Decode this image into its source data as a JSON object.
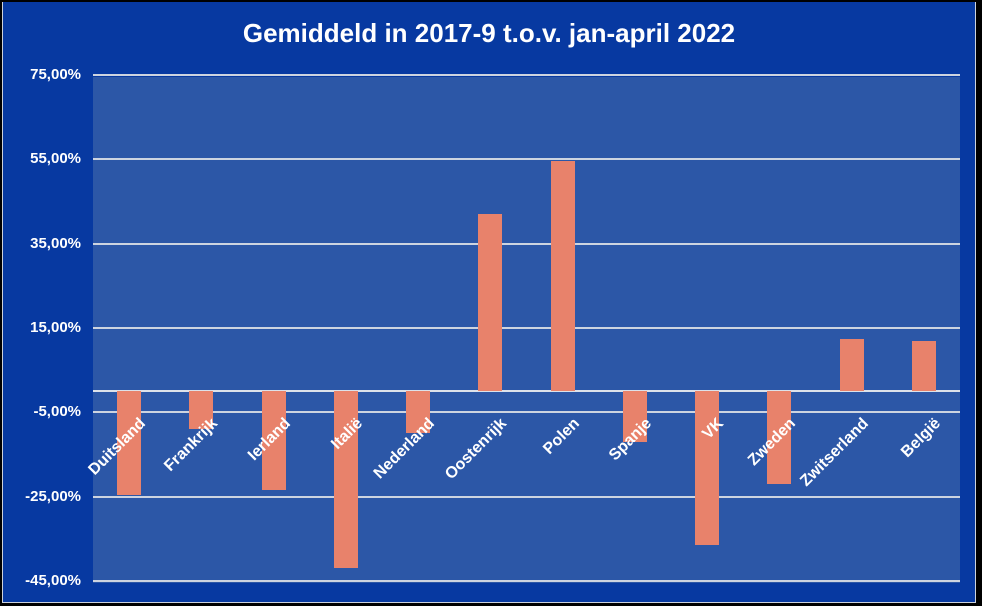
{
  "chart_data": {
    "type": "bar",
    "title": "Gemiddeld in 2017-9 t.o.v. jan-april 2022",
    "categories": [
      "Duitsland",
      "Frankrijk",
      "Ierland",
      "Italië",
      "Nederland",
      "Oostenrijk",
      "Polen",
      "Spanje",
      "VK",
      "Zweden",
      "Zwitserland",
      "België"
    ],
    "values": [
      -24.5,
      -9,
      -23.5,
      -42,
      -10,
      42,
      54.5,
      -12,
      -36.5,
      -22,
      12.5,
      12
    ],
    "value_unit": "%",
    "y_ticks": [
      {
        "value": 75,
        "label": "75,00%"
      },
      {
        "value": 55,
        "label": "55,00%"
      },
      {
        "value": 35,
        "label": "35,00%"
      },
      {
        "value": 15,
        "label": "15,00%"
      },
      {
        "value": -5,
        "label": "-5,00%"
      },
      {
        "value": -25,
        "label": "-25,00%"
      },
      {
        "value": -45,
        "label": "-45,00%"
      }
    ],
    "ylim": [
      -45,
      75
    ],
    "gridline_step": 20,
    "xlabel": "",
    "ylabel": "",
    "legend": "none",
    "grid": "horizontal",
    "colors": {
      "chart_background": "#0739a1",
      "plot_background": "#2c57a7",
      "bar_fill": "#e8826b",
      "gridline": "#cdd4e0",
      "text": "#ffffff",
      "frame_border": "#ccd2dc",
      "outer_border": "#000000"
    }
  }
}
